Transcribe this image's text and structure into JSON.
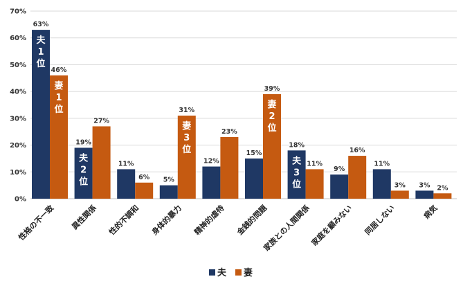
{
  "chart_data": {
    "type": "bar",
    "title": "",
    "xlabel": "",
    "ylabel": "",
    "ylim": [
      0,
      70
    ],
    "yticks": [
      "0%",
      "10%",
      "20%",
      "30%",
      "40%",
      "50%",
      "60%",
      "70%"
    ],
    "ytick_values": [
      0,
      10,
      20,
      30,
      40,
      50,
      60,
      70
    ],
    "grid": true,
    "legend_position": "bottom",
    "categories": [
      "性格の不一致",
      "異性関係",
      "性的不調和",
      "身体的暴力",
      "精神的虐待",
      "金銭的問題",
      "家族との人間関係",
      "家庭を顧みない",
      "同居しない",
      "病気"
    ],
    "series": [
      {
        "name": "夫",
        "color": "#1f3864",
        "values": [
          63,
          19,
          11,
          5,
          12,
          15,
          18,
          9,
          11,
          3
        ],
        "labels": [
          "63%",
          "19%",
          "11%",
          "5%",
          "12%",
          "15%",
          "18%",
          "9%",
          "11%",
          "3%"
        ]
      },
      {
        "name": "妻",
        "color": "#c55a11",
        "values": [
          46,
          27,
          6,
          31,
          23,
          39,
          11,
          16,
          3,
          2
        ],
        "labels": [
          "46%",
          "27%",
          "6%",
          "31%",
          "23%",
          "39%",
          "11%",
          "16%",
          "3%",
          "2%"
        ]
      }
    ],
    "annotations": [
      {
        "series": 0,
        "category": 0,
        "text": [
          "夫",
          "1",
          "位"
        ]
      },
      {
        "series": 0,
        "category": 1,
        "text": [
          "夫",
          "2",
          "位"
        ]
      },
      {
        "series": 0,
        "category": 6,
        "text": [
          "夫",
          "3",
          "位"
        ]
      },
      {
        "series": 1,
        "category": 0,
        "text": [
          "妻",
          "1",
          "位"
        ]
      },
      {
        "series": 1,
        "category": 5,
        "text": [
          "妻",
          "2",
          "位"
        ]
      },
      {
        "series": 1,
        "category": 3,
        "text": [
          "妻",
          "3",
          "位"
        ]
      }
    ],
    "legend": [
      "夫",
      "妻"
    ]
  }
}
